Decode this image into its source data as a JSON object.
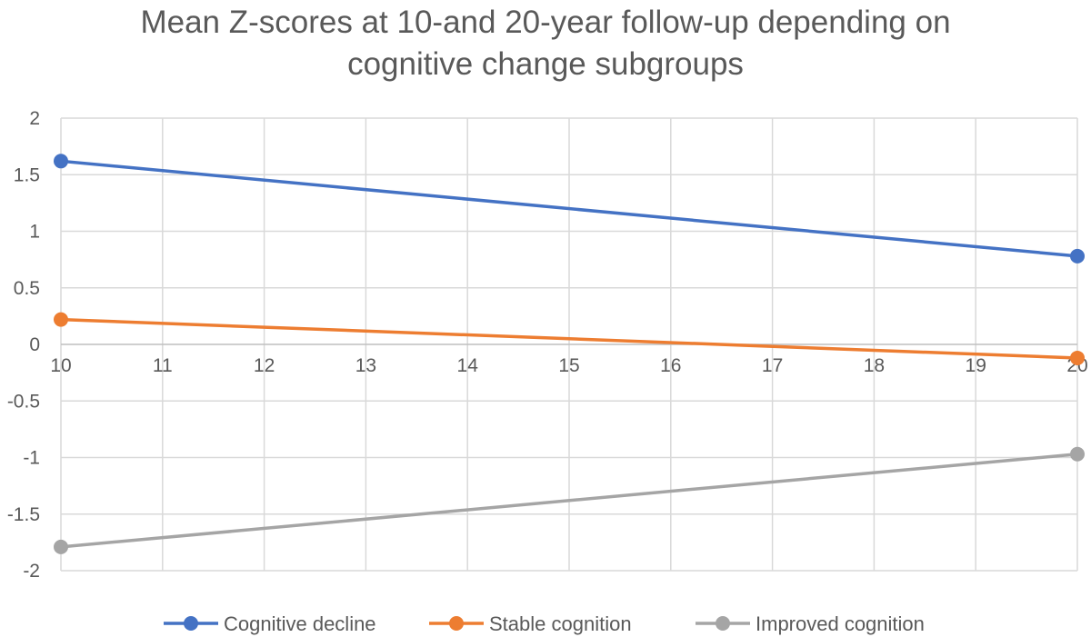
{
  "chart_data": {
    "type": "line",
    "title_lines": [
      "Mean Z-scores at 10-and 20-year follow-up depending on",
      "cognitive change subgroups"
    ],
    "xlabel": "",
    "ylabel": "",
    "xlim": [
      10,
      20
    ],
    "ylim": [
      -2,
      2
    ],
    "x_ticks": [
      "10",
      "11",
      "12",
      "13",
      "14",
      "15",
      "16",
      "17",
      "18",
      "19",
      "20"
    ],
    "y_ticks": [
      "2",
      "1.5",
      "1",
      "0.5",
      "0",
      "-0.5",
      "-1",
      "-1.5",
      "-2"
    ],
    "grid": true,
    "legend_position": "bottom",
    "series": [
      {
        "name": "Cognitive decline",
        "color": "#4472C4",
        "x": [
          10,
          20
        ],
        "y": [
          1.62,
          0.78
        ]
      },
      {
        "name": "Stable cognition",
        "color": "#ED7D31",
        "x": [
          10,
          20
        ],
        "y": [
          0.22,
          -0.12
        ]
      },
      {
        "name": "Improved cognition",
        "color": "#A5A5A5",
        "x": [
          10,
          20
        ],
        "y": [
          -1.79,
          -0.97
        ]
      }
    ]
  }
}
